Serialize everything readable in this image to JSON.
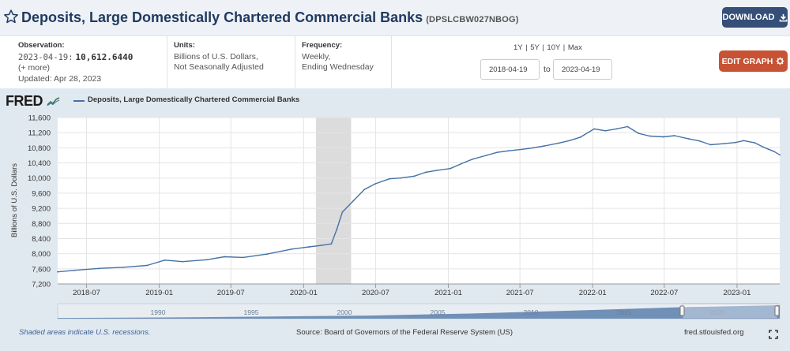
{
  "header": {
    "title": "Deposits, Large Domestically Chartered Commercial Banks",
    "series_id": "(DPSLCBW027NBOG)",
    "download_label": "DOWNLOAD",
    "star_icon": "star-outline-icon",
    "download_icon": "download-icon"
  },
  "meta": {
    "observation_label": "Observation:",
    "observation_date": "2023-04-19:",
    "observation_value": "10,612.6440",
    "more_link": "(+ more)",
    "updated": "Updated: Apr 28, 2023",
    "units_label": "Units:",
    "units_line1": "Billions of U.S. Dollars,",
    "units_line2": "Not Seasonally Adjusted",
    "frequency_label": "Frequency:",
    "frequency_line1": "Weekly,",
    "frequency_line2": "Ending Wednesday"
  },
  "controls": {
    "range_links": [
      "1Y",
      "5Y",
      "10Y",
      "Max"
    ],
    "range_separator": "|",
    "date_from": "2018-04-19",
    "date_to_label": "to",
    "date_to": "2023-04-19",
    "edit_label": "EDIT GRAPH",
    "edit_icon": "gear-icon"
  },
  "chart_data": {
    "type": "line",
    "title": "",
    "legend": [
      {
        "name": "Deposits, Large Domestically Chartered Commercial Banks",
        "color": "#4572a7"
      }
    ],
    "ylabel": "Billions of U.S. Dollars",
    "xlabel": "",
    "ylim": [
      7200,
      11600
    ],
    "xlim": [
      "2018-04-19",
      "2023-04-19"
    ],
    "y_ticks": [
      7200,
      7600,
      8000,
      8400,
      8800,
      9200,
      9600,
      10000,
      10400,
      10800,
      11200,
      11600
    ],
    "y_tick_labels": [
      "7,200",
      "7,600",
      "8,000",
      "8,400",
      "8,800",
      "9,200",
      "9,600",
      "10,000",
      "10,400",
      "10,800",
      "11,200",
      "11,600"
    ],
    "x_ticks": [
      "2018-07-01",
      "2019-01-01",
      "2019-07-01",
      "2020-01-01",
      "2020-07-01",
      "2021-01-01",
      "2021-07-01",
      "2022-01-01",
      "2022-07-01",
      "2023-01-01"
    ],
    "x_tick_labels": [
      "2018-07",
      "2019-01",
      "2019-07",
      "2020-01",
      "2020-07",
      "2021-01",
      "2021-07",
      "2022-01",
      "2022-07",
      "2023-01"
    ],
    "grid": true,
    "line_color": "#4572a7",
    "recession_color": "#dcdcdc",
    "recessions": [
      {
        "start": "2020-02-01",
        "end": "2020-04-30"
      }
    ],
    "series": [
      {
        "name": "Deposits, Large Domestically Chartered Commercial Banks",
        "x": [
          "2018-04-19",
          "2018-06-01",
          "2018-08-01",
          "2018-10-01",
          "2018-12-01",
          "2019-01-15",
          "2019-03-01",
          "2019-05-01",
          "2019-06-15",
          "2019-08-01",
          "2019-10-01",
          "2019-12-01",
          "2020-01-15",
          "2020-02-15",
          "2020-03-11",
          "2020-03-25",
          "2020-04-08",
          "2020-05-06",
          "2020-06-03",
          "2020-07-01",
          "2020-08-05",
          "2020-09-02",
          "2020-10-07",
          "2020-11-04",
          "2020-12-02",
          "2021-01-06",
          "2021-02-03",
          "2021-03-03",
          "2021-04-07",
          "2021-05-05",
          "2021-06-02",
          "2021-07-07",
          "2021-08-04",
          "2021-09-01",
          "2021-10-06",
          "2021-11-03",
          "2021-12-01",
          "2022-01-05",
          "2022-02-02",
          "2022-03-02",
          "2022-03-30",
          "2022-04-27",
          "2022-05-25",
          "2022-06-29",
          "2022-07-27",
          "2022-08-31",
          "2022-09-28",
          "2022-10-26",
          "2022-11-30",
          "2022-12-28",
          "2023-01-18",
          "2023-02-15",
          "2023-03-08",
          "2023-03-22",
          "2023-04-05",
          "2023-04-19"
        ],
        "values": [
          7520,
          7560,
          7610,
          7640,
          7690,
          7830,
          7790,
          7840,
          7920,
          7900,
          7990,
          8120,
          8180,
          8220,
          8260,
          8650,
          9100,
          9400,
          9700,
          9850,
          9980,
          10000,
          10050,
          10150,
          10200,
          10250,
          10380,
          10500,
          10600,
          10680,
          10720,
          10760,
          10800,
          10850,
          10920,
          10990,
          11080,
          11300,
          11250,
          11300,
          11360,
          11180,
          11110,
          11090,
          11120,
          11040,
          10980,
          10880,
          10910,
          10940,
          10990,
          10930,
          10820,
          10760,
          10700,
          10612.644
        ]
      }
    ]
  },
  "navigator": {
    "year_labels": [
      "1990",
      "1995",
      "2000",
      "2005",
      "2010",
      "2015",
      "2020"
    ],
    "profile": [
      0.05,
      0.09,
      0.15,
      0.23,
      0.38,
      0.6,
      0.85,
      1.0
    ],
    "selected_from": "2018",
    "selected_to": "2023"
  },
  "footer": {
    "recession_note": "Shaded areas indicate U.S. recessions.",
    "source": "Source: Board of Governors of the Federal Reserve System (US)",
    "url": "fred.stlouisfed.org",
    "fullscreen_icon": "fullscreen-icon"
  },
  "brand": {
    "logo": "FRED",
    "logo_icon": "fred-chart-icon",
    "accent": "#354f78",
    "edit_color": "#c75334"
  }
}
